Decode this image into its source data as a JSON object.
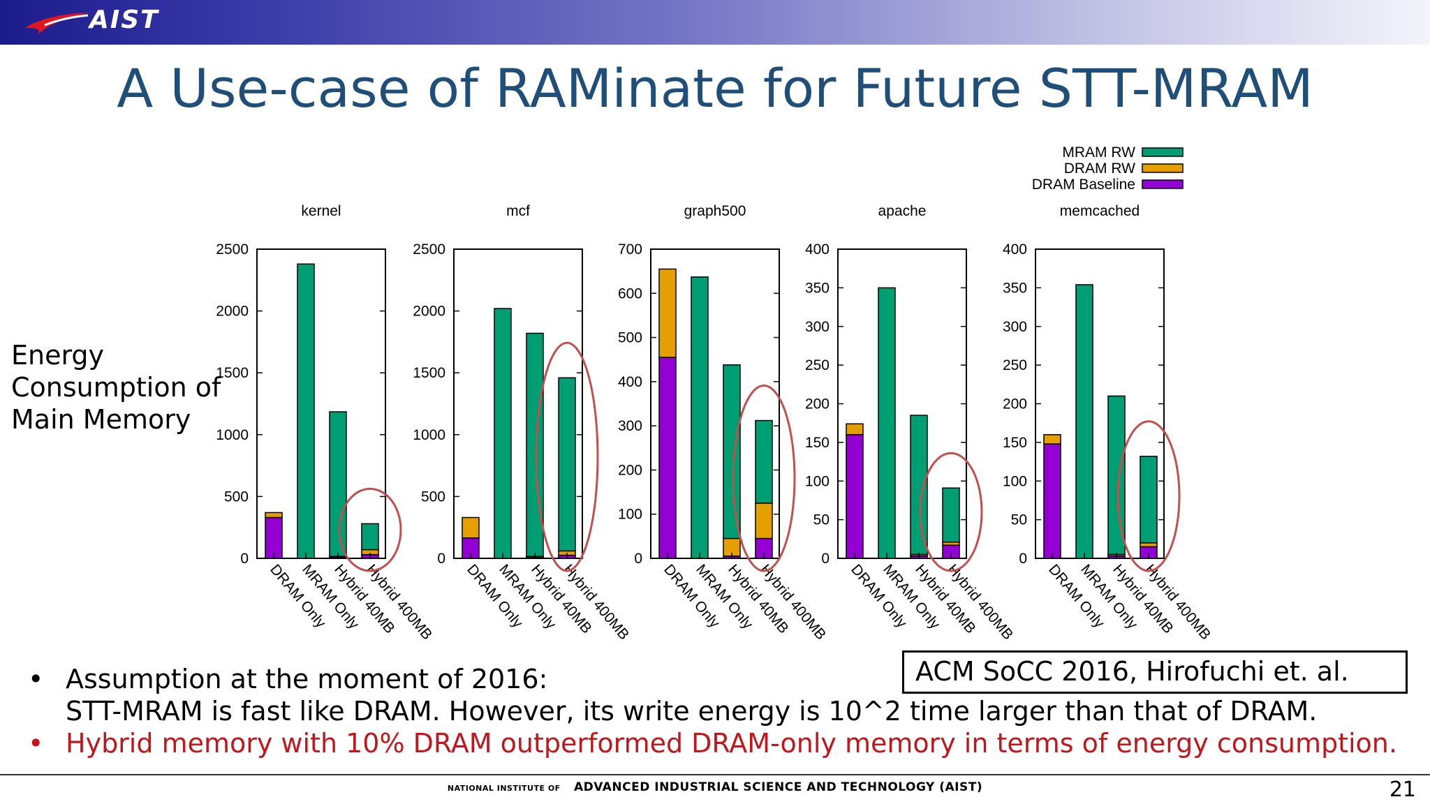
{
  "header": {
    "logo_text": "AIST"
  },
  "slide": {
    "title": "A Use-case of RAMinate for Future STT-MRAM",
    "y_label_lines": [
      "Energy",
      "Consumption of",
      "Main Memory"
    ],
    "citation": "ACM SoCC 2016, Hirofuchi et. al.",
    "bullets": [
      {
        "marker": "•",
        "lines": [
          "Assumption at the moment of 2016:",
          "STT-MRAM is fast like DRAM. However, its write energy is  10^2 time larger than that of DRAM."
        ]
      },
      {
        "marker": "•",
        "lines": [
          "Hybrid memory with 10% DRAM outperformed DRAM-only memory in terms of energy consumption."
        ]
      }
    ],
    "footer_small": "NATIONAL INSTITUTE OF",
    "footer_main": "ADVANCED INDUSTRIAL SCIENCE AND TECHNOLOGY (AIST)",
    "page_number": "21"
  },
  "colors": {
    "mram_rw": "#009e73",
    "dram_rw": "#e69f00",
    "dram_baseline": "#9400d3",
    "title": "#1f4e79",
    "highlight_red": "#c0161c",
    "circle": "#c0504d"
  },
  "chart_data": {
    "type": "bar",
    "stacked": true,
    "legend": {
      "position": "top-right",
      "entries": [
        "MRAM RW",
        "DRAM RW",
        "DRAM Baseline"
      ]
    },
    "categories": [
      "DRAM Only",
      "MRAM Only",
      "Hybrid 40MB",
      "Hybrid 400MB"
    ],
    "highlighted_category": "Hybrid 400MB",
    "panels": [
      {
        "title": "kernel",
        "ylim": [
          0,
          2500
        ],
        "yticks": [
          0,
          500,
          1000,
          1500,
          2000,
          2500
        ],
        "series": [
          {
            "name": "DRAM Baseline",
            "values": [
              330,
              0,
              10,
              30
            ]
          },
          {
            "name": "DRAM RW",
            "values": [
              40,
              0,
              5,
              40
            ]
          },
          {
            "name": "MRAM RW",
            "values": [
              0,
              2380,
              1170,
              210
            ]
          }
        ]
      },
      {
        "title": "mcf",
        "ylim": [
          0,
          2500
        ],
        "yticks": [
          0,
          500,
          1000,
          1500,
          2000,
          2500
        ],
        "series": [
          {
            "name": "DRAM Baseline",
            "values": [
              165,
              0,
              5,
              25
            ]
          },
          {
            "name": "DRAM RW",
            "values": [
              165,
              0,
              10,
              35
            ]
          },
          {
            "name": "MRAM RW",
            "values": [
              0,
              2020,
              1805,
              1400
            ]
          }
        ]
      },
      {
        "title": "graph500",
        "ylim": [
          0,
          700
        ],
        "yticks": [
          0,
          100,
          200,
          300,
          400,
          500,
          600,
          700
        ],
        "series": [
          {
            "name": "DRAM Baseline",
            "values": [
              455,
              0,
              5,
              45
            ]
          },
          {
            "name": "DRAM RW",
            "values": [
              200,
              0,
              40,
              80
            ]
          },
          {
            "name": "MRAM RW",
            "values": [
              0,
              637,
              393,
              187
            ]
          }
        ]
      },
      {
        "title": "apache",
        "ylim": [
          0,
          400
        ],
        "yticks": [
          0,
          50,
          100,
          150,
          200,
          250,
          300,
          350,
          400
        ],
        "series": [
          {
            "name": "DRAM Baseline",
            "values": [
              160,
              0,
              3,
              17
            ]
          },
          {
            "name": "DRAM RW",
            "values": [
              14,
              0,
              2,
              4
            ]
          },
          {
            "name": "MRAM RW",
            "values": [
              0,
              350,
              180,
              70
            ]
          }
        ]
      },
      {
        "title": "memcached",
        "ylim": [
          0,
          400
        ],
        "yticks": [
          0,
          50,
          100,
          150,
          200,
          250,
          300,
          350,
          400
        ],
        "series": [
          {
            "name": "DRAM Baseline",
            "values": [
              148,
              0,
              3,
              15
            ]
          },
          {
            "name": "DRAM RW",
            "values": [
              12,
              0,
              2,
              5
            ]
          },
          {
            "name": "MRAM RW",
            "values": [
              0,
              354,
              205,
              112
            ]
          }
        ]
      }
    ]
  }
}
